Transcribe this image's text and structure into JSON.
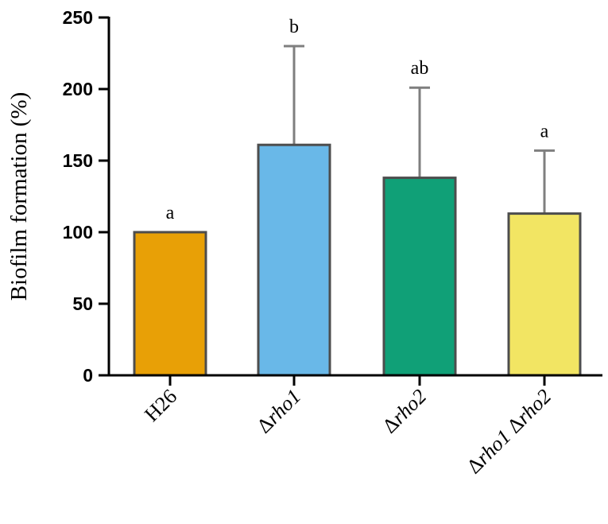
{
  "chart_data": {
    "type": "bar",
    "categories": [
      {
        "prefix": "",
        "italic": "",
        "label": "H26"
      },
      {
        "prefix": "Δ",
        "italic": "rho1",
        "label": "Δrho1"
      },
      {
        "prefix": "Δ",
        "italic": "rho2",
        "label": "Δrho2"
      },
      {
        "prefix": "",
        "italic": "",
        "label": "Δrho1 Δrho2",
        "parts": [
          [
            "Δ",
            "rho1"
          ],
          [
            " Δ",
            "rho2"
          ]
        ]
      }
    ],
    "values": [
      100,
      161,
      138,
      113
    ],
    "errors": [
      0,
      69,
      63,
      44
    ],
    "significance": [
      "a",
      "b",
      "ab",
      "a"
    ],
    "colors": [
      "#E8A006",
      "#69B8E8",
      "#10A077",
      "#F2E563"
    ],
    "bar_edge_color": "#4d4d4d",
    "error_color": "#7f7f7f",
    "ylabel": "Biofilm formation (%)",
    "xlabel": "",
    "ylim": [
      0,
      250
    ],
    "yticks": [
      0,
      50,
      100,
      150,
      200,
      250
    ],
    "grid": false
  }
}
